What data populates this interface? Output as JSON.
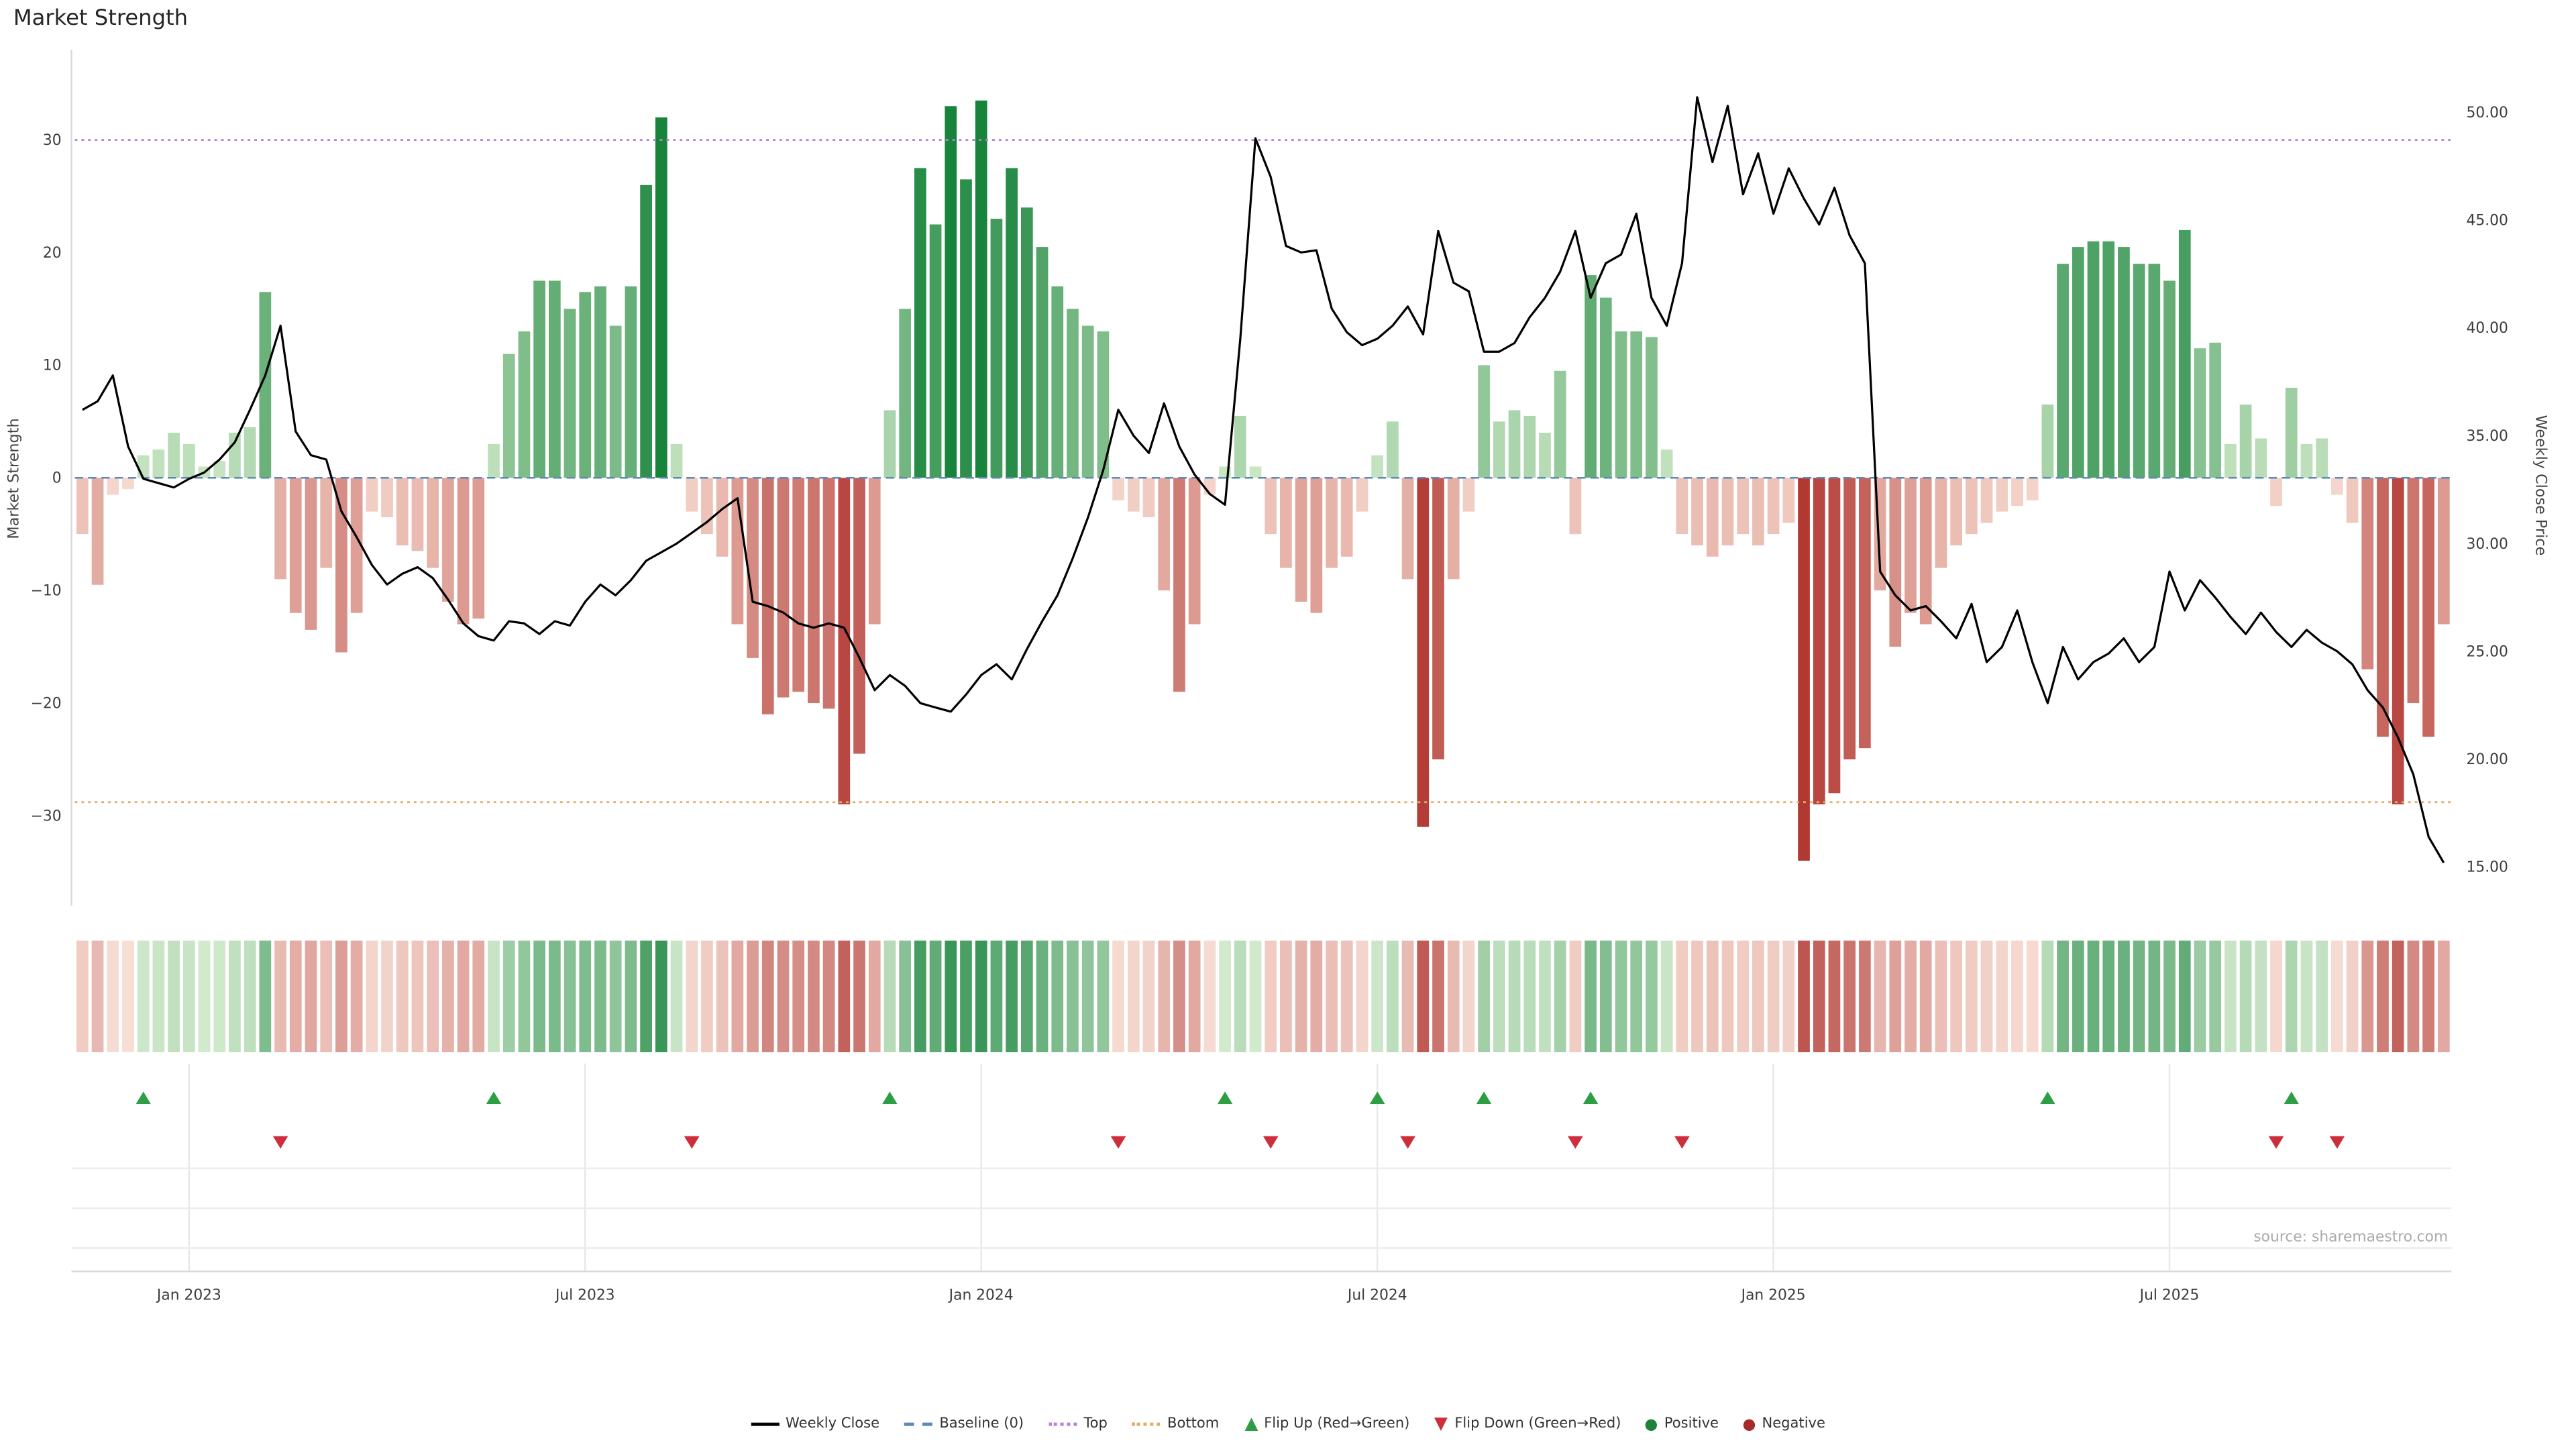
{
  "source_note": "source: sharemaestro.com",
  "chart_data": {
    "type": "bar+line",
    "title": "Market Strength",
    "left_axis": {
      "label": "Market Strength",
      "range": [
        -38,
        38
      ],
      "ticks": [
        {
          "label": "30",
          "value": 30
        },
        {
          "label": "20",
          "value": 20
        },
        {
          "label": "10",
          "value": 10
        },
        {
          "label": "0",
          "value": 0
        },
        {
          "label": "−10",
          "value": -10
        },
        {
          "label": "−20",
          "value": -20
        },
        {
          "label": "−30",
          "value": -30
        }
      ]
    },
    "right_axis": {
      "label": "Weekly Close Price",
      "range": [
        13.2,
        52.9
      ],
      "ticks": [
        {
          "label": "50.00",
          "value": 50
        },
        {
          "label": "45.00",
          "value": 45
        },
        {
          "label": "40.00",
          "value": 40
        },
        {
          "label": "35.00",
          "value": 35
        },
        {
          "label": "30.00",
          "value": 30
        },
        {
          "label": "25.00",
          "value": 25
        },
        {
          "label": "20.00",
          "value": 20
        },
        {
          "label": "15.00",
          "value": 15
        }
      ]
    },
    "x_axis": {
      "ticks": [
        {
          "label": "Jan 2023",
          "week": 7
        },
        {
          "label": "Jul 2023",
          "week": 33
        },
        {
          "label": "Jan 2024",
          "week": 59
        },
        {
          "label": "Jul 2024",
          "week": 85
        },
        {
          "label": "Jan 2025",
          "week": 111
        },
        {
          "label": "Jul 2025",
          "week": 137
        }
      ]
    },
    "reference_lines": {
      "baseline": {
        "label": "Baseline (0)",
        "value": 0
      },
      "top": {
        "label": "Top",
        "value": 30
      },
      "bottom": {
        "label": "Bottom",
        "value": -28.8
      }
    },
    "series": {
      "bars_name": "Market Strength",
      "bars": [
        -5,
        -9.5,
        -1.5,
        -1,
        2,
        2.5,
        4,
        3,
        1,
        1.5,
        4,
        4.5,
        16.5,
        -9,
        -12,
        -13.5,
        -8,
        -15.5,
        -12,
        -3,
        -3.5,
        -6,
        -6.5,
        -8,
        -11,
        -13,
        -12.5,
        3,
        11,
        13,
        17.5,
        17.5,
        15,
        16.5,
        17,
        13.5,
        17,
        26,
        32,
        3,
        -3,
        -5,
        -7,
        -13,
        -16,
        -21,
        -19.5,
        -19,
        -20,
        -20.5,
        -29,
        -24.5,
        -13,
        6,
        15,
        27.5,
        22.5,
        33,
        26.5,
        33.5,
        23,
        27.5,
        24,
        20.5,
        17,
        15,
        13.5,
        13,
        -2,
        -3,
        -3.5,
        -10,
        -19,
        -13,
        -1.5,
        1,
        5.5,
        1,
        -5,
        -8,
        -11,
        -12,
        -8,
        -7,
        -3,
        2,
        5,
        -9,
        -31,
        -25,
        -9,
        -3,
        10,
        5,
        6,
        5.5,
        4,
        9.5,
        -5,
        18,
        16,
        13,
        13,
        12.5,
        2.5,
        -5,
        -6,
        -7,
        -6,
        -5,
        -6,
        -5,
        -4,
        -34,
        -29,
        -28,
        -25,
        -24,
        -10,
        -15,
        -12,
        -13,
        -8,
        -6,
        -5,
        -4,
        -3,
        -2.5,
        -2,
        6.5,
        19,
        20.5,
        21,
        21,
        20.5,
        19,
        19,
        17.5,
        22,
        11.5,
        12,
        3,
        6.5,
        3.5,
        -2.5,
        8,
        3,
        3.5,
        -1.5,
        -4,
        -17,
        -23,
        -29,
        -20,
        -23,
        -13
      ],
      "line_name": "Weekly Close",
      "line": [
        36.2,
        36.6,
        37.8,
        34.5,
        33.0,
        32.8,
        32.6,
        33.0,
        33.3,
        33.9,
        34.7,
        36.2,
        37.8,
        40.1,
        35.2,
        34.1,
        33.9,
        31.5,
        30.3,
        29.0,
        28.1,
        28.6,
        28.9,
        28.4,
        27.4,
        26.3,
        25.7,
        25.5,
        26.4,
        26.3,
        25.8,
        26.4,
        26.2,
        27.3,
        28.1,
        27.6,
        28.3,
        29.2,
        29.6,
        30.0,
        30.5,
        31.0,
        31.6,
        32.1,
        27.3,
        27.1,
        26.8,
        26.3,
        26.1,
        26.3,
        26.1,
        24.7,
        23.2,
        23.9,
        23.4,
        22.6,
        22.4,
        22.2,
        23.0,
        23.9,
        24.4,
        23.7,
        25.1,
        26.4,
        27.6,
        29.3,
        31.2,
        33.4,
        36.2,
        35.0,
        34.2,
        36.5,
        34.5,
        33.2,
        32.3,
        31.8,
        39.5,
        48.8,
        47.0,
        43.8,
        43.5,
        43.6,
        40.9,
        39.8,
        39.2,
        39.5,
        40.1,
        41.0,
        39.7,
        44.5,
        42.1,
        41.7,
        38.9,
        38.9,
        39.3,
        40.5,
        41.4,
        42.6,
        44.5,
        41.4,
        43.0,
        43.4,
        45.3,
        41.4,
        40.1,
        43.0,
        50.7,
        47.7,
        50.3,
        46.2,
        48.1,
        45.3,
        47.4,
        46.0,
        44.8,
        46.5,
        44.3,
        43.0,
        28.7,
        27.6,
        26.9,
        27.1,
        26.4,
        25.6,
        27.2,
        24.5,
        25.2,
        26.9,
        24.5,
        22.6,
        25.2,
        23.7,
        24.5,
        24.9,
        25.6,
        24.5,
        25.2,
        28.7,
        26.9,
        28.3,
        27.5,
        26.6,
        25.8,
        26.8,
        25.9,
        25.2,
        26.0,
        25.4,
        25.0,
        24.4,
        23.2,
        22.4,
        21.0,
        19.3,
        16.4,
        15.2
      ]
    },
    "flips": {
      "up_weeks": [
        4,
        27,
        53,
        75,
        85,
        92,
        99,
        129,
        145
      ],
      "down_weeks": [
        13,
        40,
        68,
        78,
        87,
        98,
        105,
        144,
        148
      ]
    },
    "colors": {
      "line": "#000000",
      "baseline": "#5a8ab5",
      "top": "#b583d6",
      "bottom": "#dfae66",
      "positive_light": "#cfe9c8",
      "positive_dark": "#17833b",
      "negative_light": "#f8ddd2",
      "negative_dark": "#b23832",
      "flip_up": "#2e9e44",
      "flip_down": "#cc2e3c",
      "positive_dot": "#1e8239",
      "negative_dot": "#a52a2a"
    }
  },
  "legend": {
    "items": [
      {
        "label": "Weekly Close",
        "swatch": "line",
        "color": "#000000"
      },
      {
        "label": "Baseline (0)",
        "swatch": "dashed",
        "color": "#5a8ab5"
      },
      {
        "label": "Top",
        "swatch": "dotted",
        "color": "#b583d6"
      },
      {
        "label": "Bottom",
        "swatch": "dotted",
        "color": "#dfae66"
      },
      {
        "label": "Flip Up (Red→Green)",
        "swatch": "triangle-up",
        "color": "#2e9e44"
      },
      {
        "label": "Flip Down (Green→Red)",
        "swatch": "triangle-down",
        "color": "#cc2e3c"
      },
      {
        "label": "Positive",
        "swatch": "dot",
        "color": "#1e8239"
      },
      {
        "label": "Negative",
        "swatch": "dot",
        "color": "#a52a2a"
      }
    ]
  }
}
